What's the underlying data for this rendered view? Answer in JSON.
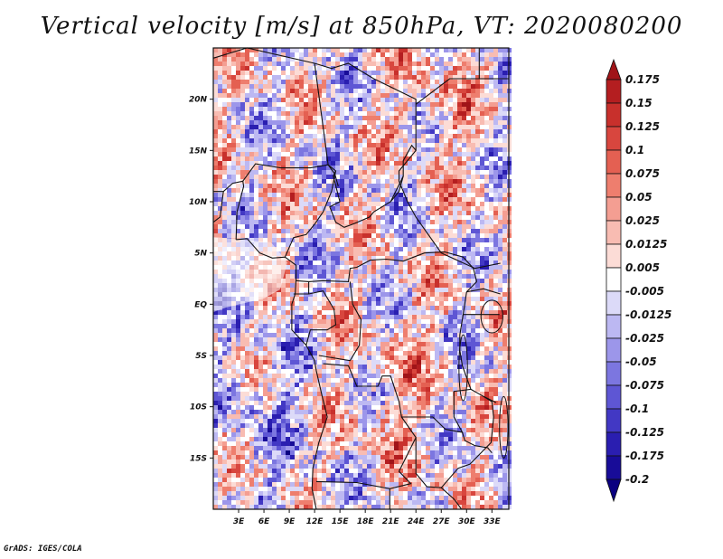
{
  "title": "Vertical velocity [m/s] at 850hPa, VT: 2020080200",
  "footer": "GrADS: IGES/COLA",
  "map": {
    "lon_range": [
      0,
      35
    ],
    "lat_range": [
      -20,
      25
    ],
    "x_ticks": [
      {
        "lon": 3,
        "label": "3E"
      },
      {
        "lon": 6,
        "label": "6E"
      },
      {
        "lon": 9,
        "label": "9E"
      },
      {
        "lon": 12,
        "label": "12E"
      },
      {
        "lon": 15,
        "label": "15E"
      },
      {
        "lon": 18,
        "label": "18E"
      },
      {
        "lon": 21,
        "label": "21E"
      },
      {
        "lon": 24,
        "label": "24E"
      },
      {
        "lon": 27,
        "label": "27E"
      },
      {
        "lon": 30,
        "label": "30E"
      },
      {
        "lon": 33,
        "label": "33E"
      }
    ],
    "y_ticks": [
      {
        "lat": 20,
        "label": "20N"
      },
      {
        "lat": 15,
        "label": "15N"
      },
      {
        "lat": 10,
        "label": "10N"
      },
      {
        "lat": 5,
        "label": "5N"
      },
      {
        "lat": 0,
        "label": "EQ"
      },
      {
        "lat": -5,
        "label": "5S"
      },
      {
        "lat": -10,
        "label": "10S"
      },
      {
        "lat": -15,
        "label": "15S"
      }
    ]
  },
  "colorbar": {
    "labels": [
      "0.175",
      "0.15",
      "0.125",
      "0.1",
      "0.075",
      "0.05",
      "0.025",
      "0.0125",
      "0.005",
      "-0.005",
      "-0.0125",
      "-0.025",
      "-0.05",
      "-0.075",
      "-0.1",
      "-0.125",
      "-0.175",
      "-0.2"
    ],
    "colors": [
      "#a01418",
      "#b41e20",
      "#c8302c",
      "#d8463e",
      "#e46052",
      "#ee7e6e",
      "#f49e92",
      "#f8bcb2",
      "#fcdcd6",
      "#ffffff",
      "#dcdaf8",
      "#bcb8f2",
      "#9c96ea",
      "#7c76e0",
      "#5e56d4",
      "#4238c4",
      "#2a1eb0",
      "#180c98",
      "#0a0080"
    ]
  }
}
